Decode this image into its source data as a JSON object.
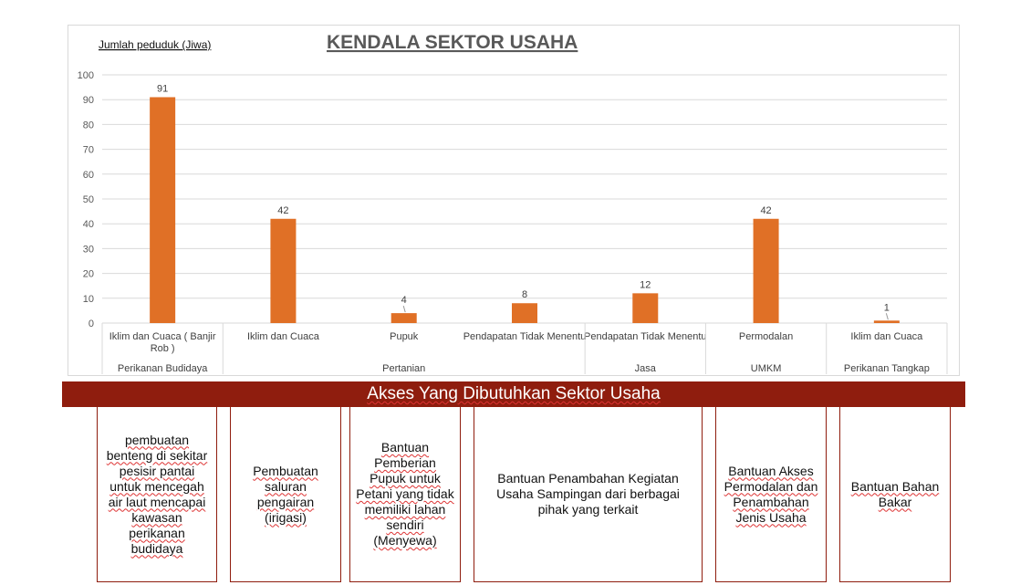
{
  "chart_data": {
    "type": "bar",
    "title": "KENDALA SEKTOR USAHA",
    "ylabel": "Jumlah peduduk (Jiwa)",
    "xlabel": "",
    "ylim": [
      0,
      100
    ],
    "yticks": [
      0,
      10,
      20,
      30,
      40,
      50,
      60,
      70,
      80,
      90,
      100
    ],
    "grid": true,
    "legend": "none",
    "bar_color": "#e07026",
    "categories": [
      "Iklim dan Cuaca ( Banjir Rob )",
      "Iklim dan Cuaca",
      "Pupuk",
      "Pendapatan Tidak Menentu",
      "Pendapatan Tidak Menentu",
      "Permodalan",
      "Iklim dan Cuaca"
    ],
    "values": [
      91,
      42,
      4,
      8,
      12,
      42,
      1
    ],
    "groups": [
      {
        "label": "Perikanan Budidaya",
        "span": 1
      },
      {
        "label": "Pertanian",
        "span": 3
      },
      {
        "label": "Jasa",
        "span": 1
      },
      {
        "label": "UMKM",
        "span": 1
      },
      {
        "label": "Perikanan Tangkap",
        "span": 1
      }
    ]
  },
  "access_banner": "Akses Yang Dibutuhkan Sektor Usaha",
  "solutions": [
    "pembuatan benteng di sekitar pesisir pantai untuk mencegah air laut mencapai kawasan perikanan budidaya",
    "Pembuatan saluran pengairan (irigasi)",
    "Bantuan Pemberian Pupuk untuk Petani yang tidak memiliki lahan sendiri (Menyewa)",
    "Bantuan Penambahan Kegiatan Usaha Sampingan dari berbagai pihak yang terkait",
    "Bantuan Akses Permodalan dan Penambahan Jenis Usaha",
    "Bantuan Bahan Bakar"
  ],
  "colors": {
    "bar": "#e07026",
    "banner": "#8f1d0e",
    "grid": "#d9d9d9"
  }
}
